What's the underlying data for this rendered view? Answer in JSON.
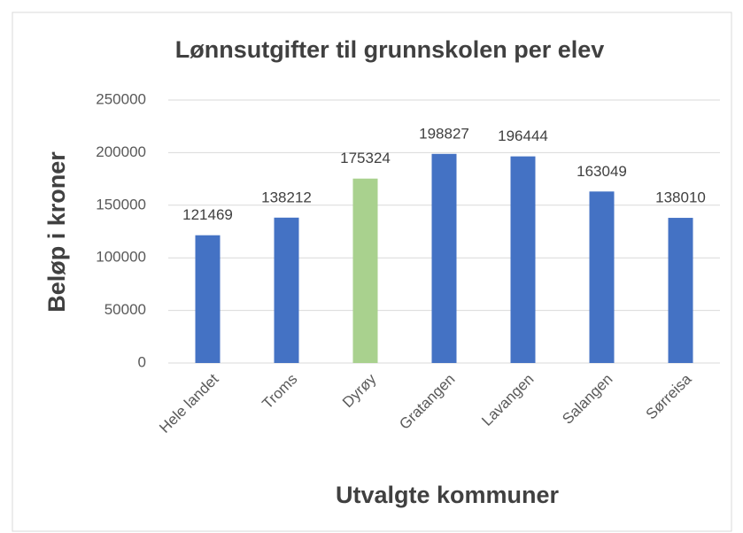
{
  "chart_data": {
    "type": "bar",
    "title": "Lønnsutgifter til grunnskolen per elev",
    "x_label": "Utvalgte kommuner",
    "y_label": "Beløp i kroner",
    "categories": [
      "Hele landet",
      "Troms",
      "Dyrøy",
      "Gratangen",
      "Lavangen",
      "Salangen",
      "Sørreisa"
    ],
    "values": [
      121469,
      138212,
      175324,
      198827,
      196444,
      163049,
      138010
    ],
    "colors": [
      "#4472c4",
      "#4472c4",
      "#a9d18e",
      "#4472c4",
      "#4472c4",
      "#4472c4",
      "#4472c4"
    ],
    "ylim": [
      0,
      250000
    ],
    "yticks": [
      0,
      50000,
      100000,
      150000,
      200000,
      250000
    ],
    "grid": true
  }
}
